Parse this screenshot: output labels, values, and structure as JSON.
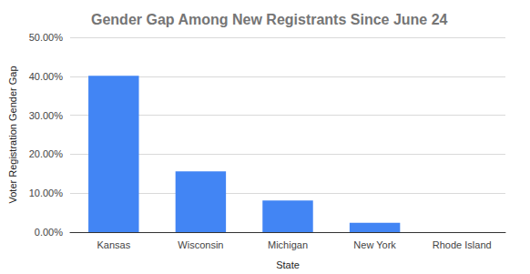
{
  "chart_data": {
    "type": "bar",
    "title": "Gender Gap Among New Registrants Since June 24",
    "xlabel": "State",
    "ylabel": "Voter Registration Gender Gap",
    "categories": [
      "Kansas",
      "Wisconsin",
      "Michigan",
      "New York",
      "Rhode Island"
    ],
    "values": [
      40.1,
      15.6,
      8.1,
      2.4,
      0
    ],
    "color": "#4285f4",
    "ylim": [
      0,
      50
    ],
    "yticks": [
      {
        "value": 0,
        "label": "0.00%"
      },
      {
        "value": 10,
        "label": "10.00%"
      },
      {
        "value": 20,
        "label": "20.00%"
      },
      {
        "value": 30,
        "label": "30.00%"
      },
      {
        "value": 40,
        "label": "40.00%"
      },
      {
        "value": 50,
        "label": "50.00%"
      }
    ],
    "grid": true
  }
}
